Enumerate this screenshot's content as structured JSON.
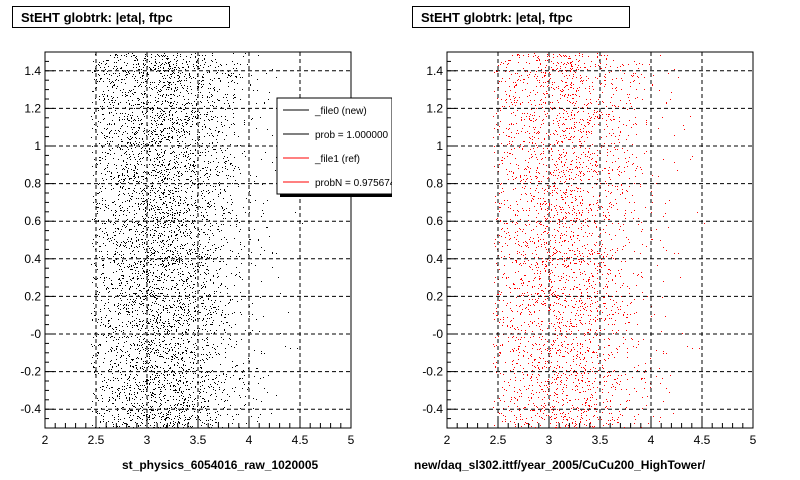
{
  "chart_data": [
    {
      "type": "scatter",
      "title": "StEHT globtrk: |eta|, ftpc",
      "xlabel": "",
      "ylabel": "",
      "xlim": [
        2,
        5
      ],
      "ylim": [
        -0.5,
        1.5
      ],
      "x_ticks": [
        "2",
        "2.5",
        "3",
        "3.5",
        "4",
        "4.5",
        "5"
      ],
      "y_ticks": [
        "-0.4",
        "-0.2",
        "-0",
        "0.2",
        "0.4",
        "0.6",
        "0.8",
        "1",
        "1.2",
        "1.4"
      ],
      "grid": true,
      "series": [
        {
          "name": "_file0 (new)",
          "color": "#000000",
          "distribution": {
            "x_min": 2.45,
            "x_max": 4.6,
            "x_center": 3.1,
            "density": "high",
            "y_uniform": true
          }
        }
      ],
      "legend": {
        "position": "top-right",
        "entries": [
          {
            "label": "_file0 (new)",
            "color": "#000000"
          },
          {
            "label": "prob = 1.000000",
            "color": "#000000"
          },
          {
            "label": "_file1 (ref)",
            "color": "#ff0000"
          },
          {
            "label": "probN = 0.975674",
            "color": "#ff0000"
          }
        ]
      },
      "caption": "st_physics_6054016_raw_1020005"
    },
    {
      "type": "scatter",
      "title": "StEHT globtrk: |eta|, ftpc",
      "xlabel": "",
      "ylabel": "",
      "xlim": [
        2,
        5
      ],
      "ylim": [
        -0.5,
        1.5
      ],
      "x_ticks": [
        "2",
        "2.5",
        "3",
        "3.5",
        "4",
        "4.5",
        "5"
      ],
      "y_ticks": [
        "-0.4",
        "-0.2",
        "-0",
        "0.2",
        "0.4",
        "0.6",
        "0.8",
        "1",
        "1.2",
        "1.4"
      ],
      "grid": true,
      "series": [
        {
          "name": "_file1 (ref)",
          "color": "#ff0000",
          "distribution": {
            "x_min": 2.45,
            "x_max": 4.6,
            "x_center": 3.1,
            "density": "medium",
            "y_uniform": true
          }
        }
      ],
      "caption": "new/daq_sl302.ittf/year_2005/CuCu200_HighTower/"
    }
  ]
}
